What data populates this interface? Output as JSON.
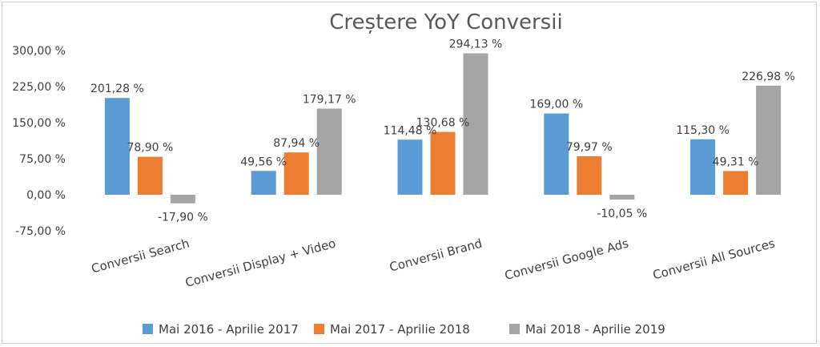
{
  "chart_data": {
    "type": "bar",
    "title": "Creștere YoY Conversii",
    "categories": [
      "Conversii Search",
      "Conversii Display + Video",
      "Conversii Brand",
      "Conversii Google Ads",
      "Conversii All Sources"
    ],
    "series": [
      {
        "name": "Mai 2016 - Aprilie 2017",
        "color": "#5B9BD5",
        "values": [
          201.28,
          49.56,
          114.48,
          169.0,
          115.3
        ],
        "labels": [
          "201,28 %",
          "49,56 %",
          "114,48 %",
          "169,00 %",
          "115,30 %"
        ]
      },
      {
        "name": "Mai 2017 - Aprilie 2018",
        "color": "#ED7D31",
        "values": [
          78.9,
          87.94,
          130.68,
          79.97,
          49.31
        ],
        "labels": [
          "78,90 %",
          "87,94 %",
          "130,68 %",
          "79,97 %",
          "49,31 %"
        ]
      },
      {
        "name": "Mai 2018 - Aprilie 2019",
        "color": "#A5A5A5",
        "values": [
          -17.9,
          179.17,
          294.13,
          -10.05,
          226.98
        ],
        "labels": [
          "-17,90 %",
          "179,17 %",
          "294,13 %",
          "-10,05 %",
          "226,98 %"
        ]
      }
    ],
    "ylim": [
      -75,
      300
    ],
    "yticks": [
      300,
      225,
      150,
      75,
      0,
      -75
    ],
    "ytick_labels": [
      "300,00 %",
      "225,00 %",
      "150,00 %",
      "75,00 %",
      "0,00 %",
      "-75,00 %"
    ],
    "grid": false,
    "legend_position": "bottom"
  }
}
